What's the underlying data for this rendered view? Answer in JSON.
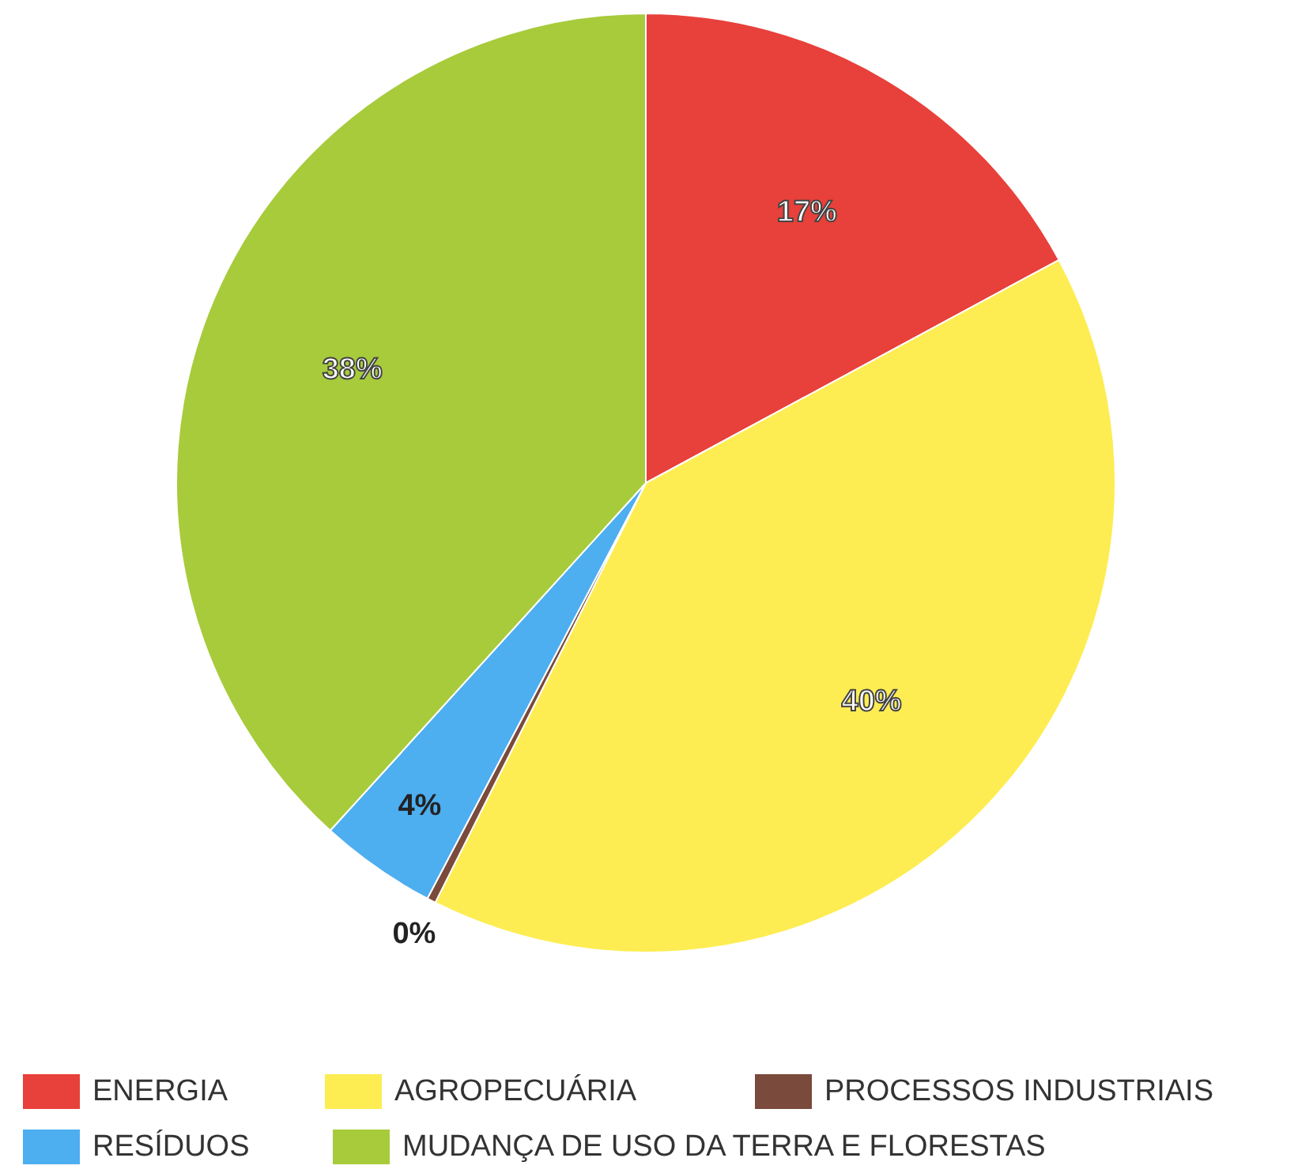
{
  "chart_data": {
    "type": "pie",
    "categories": [
      "ENERGIA",
      "AGROPECUÁRIA",
      "PROCESSOS INDUSTRIAIS",
      "RESÍDUOS",
      "MUDANÇA DE USO DA TERRA E FLORESTAS"
    ],
    "values": [
      17,
      40,
      0.3,
      4,
      38
    ],
    "value_labels": [
      "17%",
      "40%",
      "0%",
      "4%",
      "38%"
    ],
    "colors": [
      "#e8403a",
      "#fded52",
      "#7a4a3c",
      "#4daef0",
      "#a7cb3b"
    ],
    "legend": "bottom"
  }
}
